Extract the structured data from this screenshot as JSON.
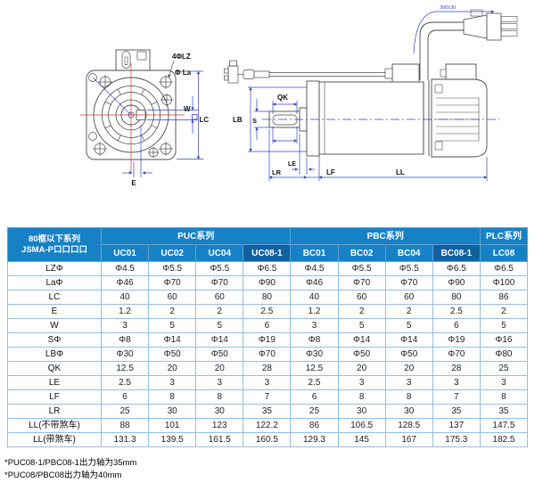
{
  "drawing": {
    "front": {
      "bolt_holes": "4ΦLZ",
      "flange_dia": "Φ La",
      "key_width": "W",
      "frame": "LC",
      "key_offset": "E"
    },
    "side": {
      "key_len": "QK",
      "pilot_dia": "LB",
      "shaft_dia": "S",
      "le": "LE",
      "lr": "LR",
      "lf": "LF",
      "ll": "LL",
      "cable_len": "300±30"
    }
  },
  "table": {
    "corner": {
      "line1": "80框以下系列",
      "line2": "JSMA-P口口口口"
    },
    "groups": [
      {
        "label": "PUC系列",
        "span": 4
      },
      {
        "label": "PBC系列",
        "span": 4
      },
      {
        "label": "PLC系列",
        "span": 1
      }
    ],
    "columns": [
      {
        "label": "UC01",
        "dark": false
      },
      {
        "label": "UC02",
        "dark": false
      },
      {
        "label": "UC04",
        "dark": false
      },
      {
        "label": "UC08-1",
        "dark": true
      },
      {
        "label": "BC01",
        "dark": false
      },
      {
        "label": "BC02",
        "dark": false
      },
      {
        "label": "BC04",
        "dark": false
      },
      {
        "label": "BC08-1",
        "dark": true
      },
      {
        "label": "LC08",
        "dark": false
      }
    ],
    "rows": [
      {
        "label": "LZΦ",
        "values": [
          "Φ4.5",
          "Φ5.5",
          "Φ5.5",
          "Φ6.5",
          "Φ4.5",
          "Φ5.5",
          "Φ5.5",
          "Φ6.5",
          "Φ6.5"
        ]
      },
      {
        "label": "LaΦ",
        "values": [
          "Φ46",
          "Φ70",
          "Φ70",
          "Φ90",
          "Φ46",
          "Φ70",
          "Φ70",
          "Φ90",
          "Φ100"
        ]
      },
      {
        "label": "LC",
        "values": [
          "40",
          "60",
          "60",
          "80",
          "40",
          "60",
          "60",
          "80",
          "86"
        ]
      },
      {
        "label": "E",
        "values": [
          "1.2",
          "2",
          "2",
          "2.5",
          "1.2",
          "2",
          "2",
          "2.5",
          "2"
        ]
      },
      {
        "label": "W",
        "values": [
          "3",
          "5",
          "5",
          "6",
          "3",
          "5",
          "5",
          "6",
          "5"
        ]
      },
      {
        "label": "SΦ",
        "values": [
          "Φ8",
          "Φ14",
          "Φ14",
          "Φ19",
          "Φ8",
          "Φ14",
          "Φ14",
          "Φ19",
          "Φ16"
        ]
      },
      {
        "label": "LBΦ",
        "values": [
          "Φ30",
          "Φ50",
          "Φ50",
          "Φ70",
          "Φ30",
          "Φ50",
          "Φ50",
          "Φ70",
          "Φ80"
        ]
      },
      {
        "label": "QK",
        "values": [
          "12.5",
          "20",
          "20",
          "28",
          "12.5",
          "20",
          "20",
          "28",
          "25"
        ]
      },
      {
        "label": "LE",
        "values": [
          "2.5",
          "3",
          "3",
          "3",
          "2.5",
          "3",
          "3",
          "3",
          "3"
        ]
      },
      {
        "label": "LF",
        "values": [
          "6",
          "8",
          "8",
          "7",
          "6",
          "8",
          "8",
          "7",
          "8"
        ]
      },
      {
        "label": "LR",
        "values": [
          "25",
          "30",
          "30",
          "35",
          "25",
          "30",
          "30",
          "35",
          "35"
        ]
      },
      {
        "label": "LL(不带煞车)",
        "values": [
          "88",
          "101",
          "123",
          "122.2",
          "86",
          "106.5",
          "128.5",
          "137",
          "147.5"
        ]
      },
      {
        "label": "LL(带煞车)",
        "values": [
          "131.3",
          "139.5",
          "161.5",
          "160.5",
          "129.3",
          "145",
          "167",
          "175.3",
          "182.5"
        ]
      }
    ]
  },
  "notes": [
    "*PUC08-1/PBC08-1出力轴为35mm",
    "*PUC08/PBC08出力轴为40mm"
  ],
  "colors": {
    "header_blue": "#1781c5",
    "header_dark": "#11619f",
    "grid": "#93bfdf",
    "dim_blue": "#3344bb",
    "centerline_red": "#c03a33",
    "line": "#4a4a4a"
  }
}
